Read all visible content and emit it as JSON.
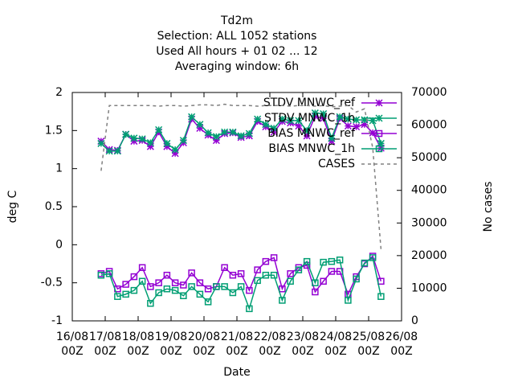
{
  "chart_data": {
    "type": "line",
    "title": [
      "Td2m",
      "Selection: ALL    1052 stations",
      "Used  All hours + 01 02 ... 12",
      "Averaging window:  6h"
    ],
    "xlabel": "Date",
    "ylabel": "deg C",
    "y2label": "No cases",
    "x": [
      0.875,
      1.125,
      1.375,
      1.625,
      1.875,
      2.125,
      2.375,
      2.625,
      2.875,
      3.125,
      3.375,
      3.625,
      3.875,
      4.125,
      4.375,
      4.625,
      4.875,
      5.125,
      5.375,
      5.625,
      5.875,
      6.125,
      6.375,
      6.625,
      6.875,
      7.125,
      7.375,
      7.625,
      7.875,
      8.125,
      8.375,
      8.625,
      8.875,
      9.125,
      9.375
    ],
    "xlim": [
      0,
      10
    ],
    "xticks": [
      {
        "value": 0,
        "label": "16/08\n00Z"
      },
      {
        "value": 1,
        "label": "17/08\n00Z"
      },
      {
        "value": 2,
        "label": "18/08\n00Z"
      },
      {
        "value": 3,
        "label": "19/08\n00Z"
      },
      {
        "value": 4,
        "label": "20/08\n00Z"
      },
      {
        "value": 5,
        "label": "21/08\n00Z"
      },
      {
        "value": 6,
        "label": "22/08\n00Z"
      },
      {
        "value": 7,
        "label": "23/08\n00Z"
      },
      {
        "value": 8,
        "label": "24/08\n00Z"
      },
      {
        "value": 9,
        "label": "25/08\n00Z"
      },
      {
        "value": 10,
        "label": "26/08\n00Z"
      }
    ],
    "ylim": [
      -1,
      2
    ],
    "yticks": [
      -1,
      -0.5,
      0,
      0.5,
      1,
      1.5,
      2
    ],
    "y2lim": [
      0,
      70000
    ],
    "y2ticks": [
      0,
      10000,
      20000,
      30000,
      40000,
      50000,
      60000,
      70000
    ],
    "series": [
      {
        "name": "STDV MNWC_ref",
        "color": "#9400d3",
        "marker": "star",
        "values": [
          1.36,
          1.25,
          1.24,
          1.45,
          1.36,
          1.37,
          1.29,
          1.48,
          1.29,
          1.2,
          1.34,
          1.65,
          1.53,
          1.44,
          1.37,
          1.46,
          1.47,
          1.41,
          1.43,
          1.62,
          1.55,
          1.48,
          1.62,
          1.6,
          1.56,
          1.43,
          1.69,
          1.66,
          1.36,
          1.66,
          1.56,
          1.55,
          1.58,
          1.47,
          1.27
        ]
      },
      {
        "name": "STDV MNWC_1h",
        "color": "#009e73",
        "marker": "star",
        "values": [
          1.33,
          1.23,
          1.23,
          1.45,
          1.4,
          1.39,
          1.34,
          1.51,
          1.33,
          1.25,
          1.37,
          1.68,
          1.58,
          1.47,
          1.42,
          1.48,
          1.48,
          1.43,
          1.46,
          1.65,
          1.58,
          1.53,
          1.65,
          1.63,
          1.63,
          1.5,
          1.73,
          1.72,
          1.4,
          1.68,
          1.65,
          1.64,
          1.64,
          1.63,
          1.33
        ]
      },
      {
        "name": "BIAS MNWC_ref",
        "color": "#9400d3",
        "marker": "square",
        "values": [
          -0.38,
          -0.35,
          -0.58,
          -0.52,
          -0.42,
          -0.3,
          -0.55,
          -0.5,
          -0.4,
          -0.5,
          -0.53,
          -0.37,
          -0.5,
          -0.58,
          -0.55,
          -0.3,
          -0.4,
          -0.38,
          -0.6,
          -0.33,
          -0.22,
          -0.17,
          -0.58,
          -0.38,
          -0.3,
          -0.27,
          -0.62,
          -0.48,
          -0.35,
          -0.35,
          -0.65,
          -0.42,
          -0.25,
          -0.15,
          -0.48
        ]
      },
      {
        "name": "BIAS MNWC_1h",
        "color": "#009e73",
        "marker": "square",
        "values": [
          -0.4,
          -0.38,
          -0.68,
          -0.65,
          -0.6,
          -0.48,
          -0.77,
          -0.63,
          -0.58,
          -0.6,
          -0.67,
          -0.55,
          -0.65,
          -0.75,
          -0.55,
          -0.55,
          -0.63,
          -0.55,
          -0.84,
          -0.47,
          -0.4,
          -0.4,
          -0.73,
          -0.48,
          -0.33,
          -0.22,
          -0.5,
          -0.23,
          -0.22,
          -0.2,
          -0.73,
          -0.45,
          -0.24,
          -0.17,
          -0.68
        ]
      },
      {
        "name": "CASES",
        "color": "#808080",
        "dashed": true,
        "axis": "y2",
        "values": [
          46000,
          66000,
          66000,
          66000,
          66000,
          66000,
          66000,
          65800,
          66000,
          66000,
          65800,
          66000,
          66200,
          66200,
          66000,
          66400,
          66000,
          66000,
          66000,
          65800,
          66000,
          66000,
          66000,
          65800,
          66000,
          66000,
          65800,
          66000,
          65600,
          65800,
          66000,
          64000,
          65000,
          53000,
          22000
        ]
      }
    ],
    "legend": "top-right"
  }
}
